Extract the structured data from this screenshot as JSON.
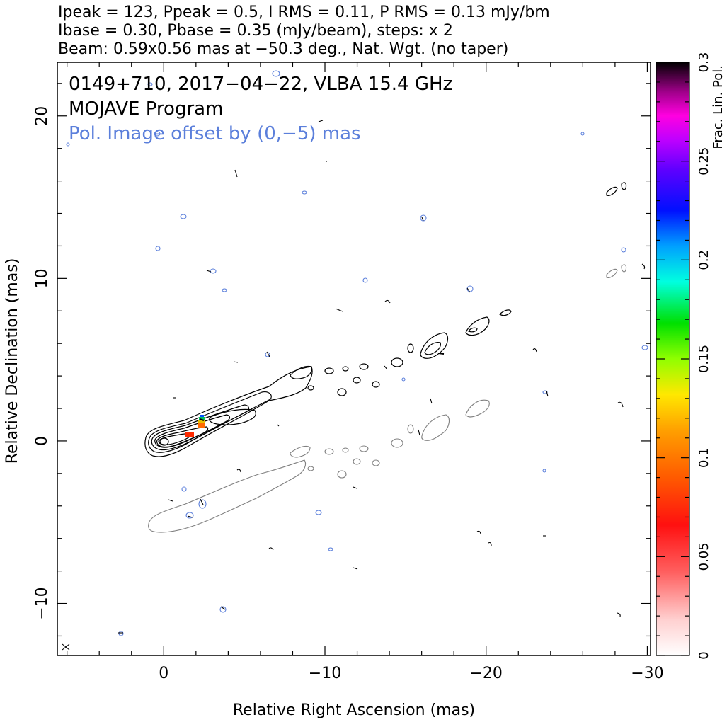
{
  "header": {
    "line1": "Ipeak = 123, Ppeak = 0.5, I RMS = 0.11, P RMS = 0.13 mJy/bm",
    "line2": "Ibase = 0.30, Pbase = 0.35 (mJy/beam), steps: x 2",
    "line3": "Beam: 0.59x0.56 mas at −50.3 deg., Nat. Wgt. (no taper)"
  },
  "inset": {
    "source_line": "0149+710, 2017−04−22, VLBA 15.4 GHz",
    "program_line": "MOJAVE Program",
    "offset_note": "Pol. Image offset by (0,−5) mas"
  },
  "chart_data": {
    "type": "contour",
    "xlabel": "Relative Right Ascension (mas)",
    "ylabel": "Relative Declination (mas)",
    "xlim": [
      6.6,
      -30.2
    ],
    "ylim": [
      -13.2,
      23.3
    ],
    "x_ticks": [
      0,
      -10,
      -20,
      -30
    ],
    "x_tick_labels": [
      "0",
      "−10",
      "−20",
      "−30"
    ],
    "y_ticks": [
      -10,
      0,
      10,
      20
    ],
    "y_tick_labels": [
      "−10",
      "0",
      "10",
      "20"
    ],
    "colorbar": {
      "label": "Frac. Lin. Pol.",
      "range": [
        0,
        0.3
      ],
      "ticks": [
        0,
        0.05,
        0.1,
        0.15,
        0.2,
        0.25,
        0.3
      ],
      "tick_labels": [
        "0",
        "0.05",
        "0.1",
        "0.15",
        "0.2",
        "0.25",
        "0.3"
      ]
    },
    "core": [
      0,
      0
    ],
    "jet_direction_deg": -61,
    "total_intensity_ridge": [
      [
        0,
        0
      ],
      [
        -2,
        0.6
      ],
      [
        -3.6,
        1.6
      ],
      [
        -5.5,
        2.3
      ],
      [
        -7.5,
        3.3
      ],
      [
        -9.5,
        4.4
      ],
      [
        -12,
        5.0
      ],
      [
        -14,
        5.2
      ],
      [
        -16.5,
        5.8
      ],
      [
        -19.5,
        7.1
      ],
      [
        -21,
        7.7
      ]
    ],
    "pol_offset": [
      0,
      -5
    ],
    "pol_patches": [
      {
        "x": -1.6,
        "y": 0.5,
        "frac": 0.05
      },
      {
        "x": -2.3,
        "y": 1.0,
        "frac": 0.07
      },
      {
        "x": -2.4,
        "y": 1.3,
        "frac": 0.12
      },
      {
        "x": -2.5,
        "y": 1.5,
        "frac": 0.2
      }
    ],
    "colors": {
      "total_intensity_contour": "#000000",
      "pol_contour": "#808080",
      "noise_contour": "#5b7fdb",
      "inset_note": "#5b7fdb"
    }
  }
}
